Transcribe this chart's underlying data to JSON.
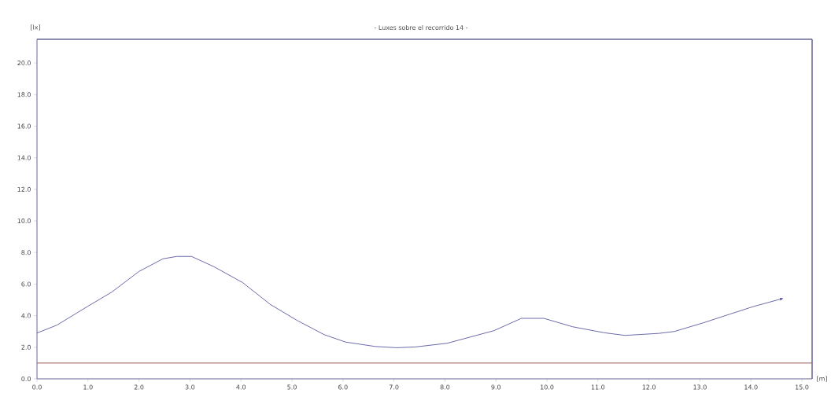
{
  "chart_data": {
    "type": "line",
    "title": "- Luxes sobre el recorrido 14 -",
    "xlabel": "[m]",
    "ylabel": "[lx]",
    "series": [
      {
        "color": "#5a5aa0",
        "x": [
          0,
          0.39,
          1.0,
          1.47,
          2.0,
          2.47,
          2.74,
          3.03,
          3.47,
          4.03,
          4.58,
          5.1,
          5.63,
          6.05,
          6.63,
          7.05,
          7.42,
          8.04,
          8.96,
          9.5,
          9.94,
          10.5,
          11.12,
          11.53,
          12.2,
          12.5,
          13.07,
          13.59,
          14.05,
          14.64
        ],
        "values": [
          2.9,
          3.4,
          4.6,
          5.5,
          6.8,
          7.6,
          7.75,
          7.75,
          7.1,
          6.1,
          4.7,
          3.7,
          2.8,
          2.33,
          2.05,
          1.97,
          2.02,
          2.25,
          3.05,
          3.83,
          3.83,
          3.3,
          2.92,
          2.75,
          2.88,
          3.0,
          3.55,
          4.1,
          4.58,
          5.1
        ]
      }
    ],
    "ref_lines": [
      {
        "axis": "y",
        "value": 1.0,
        "color": "#a05a5a"
      }
    ],
    "xlim": [
      0,
      15.2
    ],
    "ylim": [
      0,
      21.5
    ],
    "xticks": [
      {
        "value": 0,
        "label": "0.0"
      },
      {
        "value": 1,
        "label": "1.0"
      },
      {
        "value": 2,
        "label": "2.0"
      },
      {
        "value": 3,
        "label": "3.0"
      },
      {
        "value": 4,
        "label": "4.0"
      },
      {
        "value": 5,
        "label": "5.0"
      },
      {
        "value": 6,
        "label": "6.0"
      },
      {
        "value": 7,
        "label": "7.0"
      },
      {
        "value": 8,
        "label": "8.0"
      },
      {
        "value": 9,
        "label": "9.0"
      },
      {
        "value": 10,
        "label": "10.0"
      },
      {
        "value": 11,
        "label": "11.0"
      },
      {
        "value": 12,
        "label": "12.0"
      },
      {
        "value": 13,
        "label": "13.0"
      },
      {
        "value": 14,
        "label": "14.0"
      },
      {
        "value": 15,
        "label": "15.0"
      }
    ],
    "yticks": [
      {
        "value": 0,
        "label": "0.0"
      },
      {
        "value": 2,
        "label": "2.0"
      },
      {
        "value": 4,
        "label": "4.0"
      },
      {
        "value": 6,
        "label": "6.0"
      },
      {
        "value": 8,
        "label": "8.0"
      },
      {
        "value": 10,
        "label": "10.0"
      },
      {
        "value": 12,
        "label": "12.0"
      },
      {
        "value": 14,
        "label": "14.0"
      },
      {
        "value": 16,
        "label": "16.0"
      },
      {
        "value": 18,
        "label": "18.0"
      },
      {
        "value": 20,
        "label": "20.0"
      }
    ],
    "grid": false,
    "marker": "none",
    "line_style": "solid"
  }
}
